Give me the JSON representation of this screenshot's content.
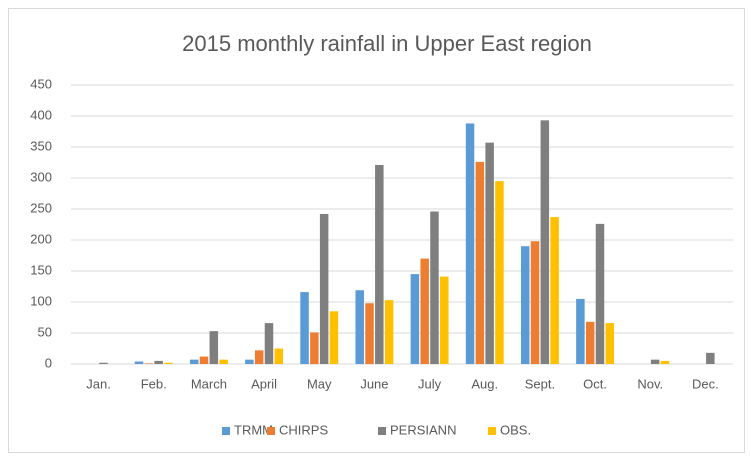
{
  "chart_data": {
    "type": "bar",
    "title": "2015 monthly rainfall in Upper East region",
    "categories": [
      "Jan.",
      "Feb.",
      "March",
      "April",
      "May",
      "June",
      "July",
      "Aug.",
      "Sept.",
      "Oct.",
      "Nov.",
      "Dec."
    ],
    "series": [
      {
        "name": "TRMM",
        "color": "#5b9bd5",
        "values": [
          0,
          4,
          7,
          7,
          116,
          119,
          145,
          388,
          190,
          105,
          0,
          0
        ]
      },
      {
        "name": "CHIRPS",
        "color": "#ed7d31",
        "values": [
          0,
          1,
          12,
          22,
          51,
          98,
          170,
          326,
          198,
          68,
          0,
          0
        ]
      },
      {
        "name": "PERSIANN",
        "color": "#7f7f7f",
        "values": [
          2,
          5,
          53,
          66,
          242,
          321,
          246,
          357,
          393,
          226,
          7,
          18
        ]
      },
      {
        "name": "OBS.",
        "color": "#ffc000",
        "values": [
          0,
          2,
          7,
          25,
          85,
          103,
          141,
          295,
          237,
          66,
          5,
          0
        ]
      }
    ],
    "ylim": [
      0,
      450
    ],
    "yticks": [
      0,
      50,
      100,
      150,
      200,
      250,
      300,
      350,
      400,
      450
    ],
    "grid": true,
    "legend": "bottom"
  }
}
